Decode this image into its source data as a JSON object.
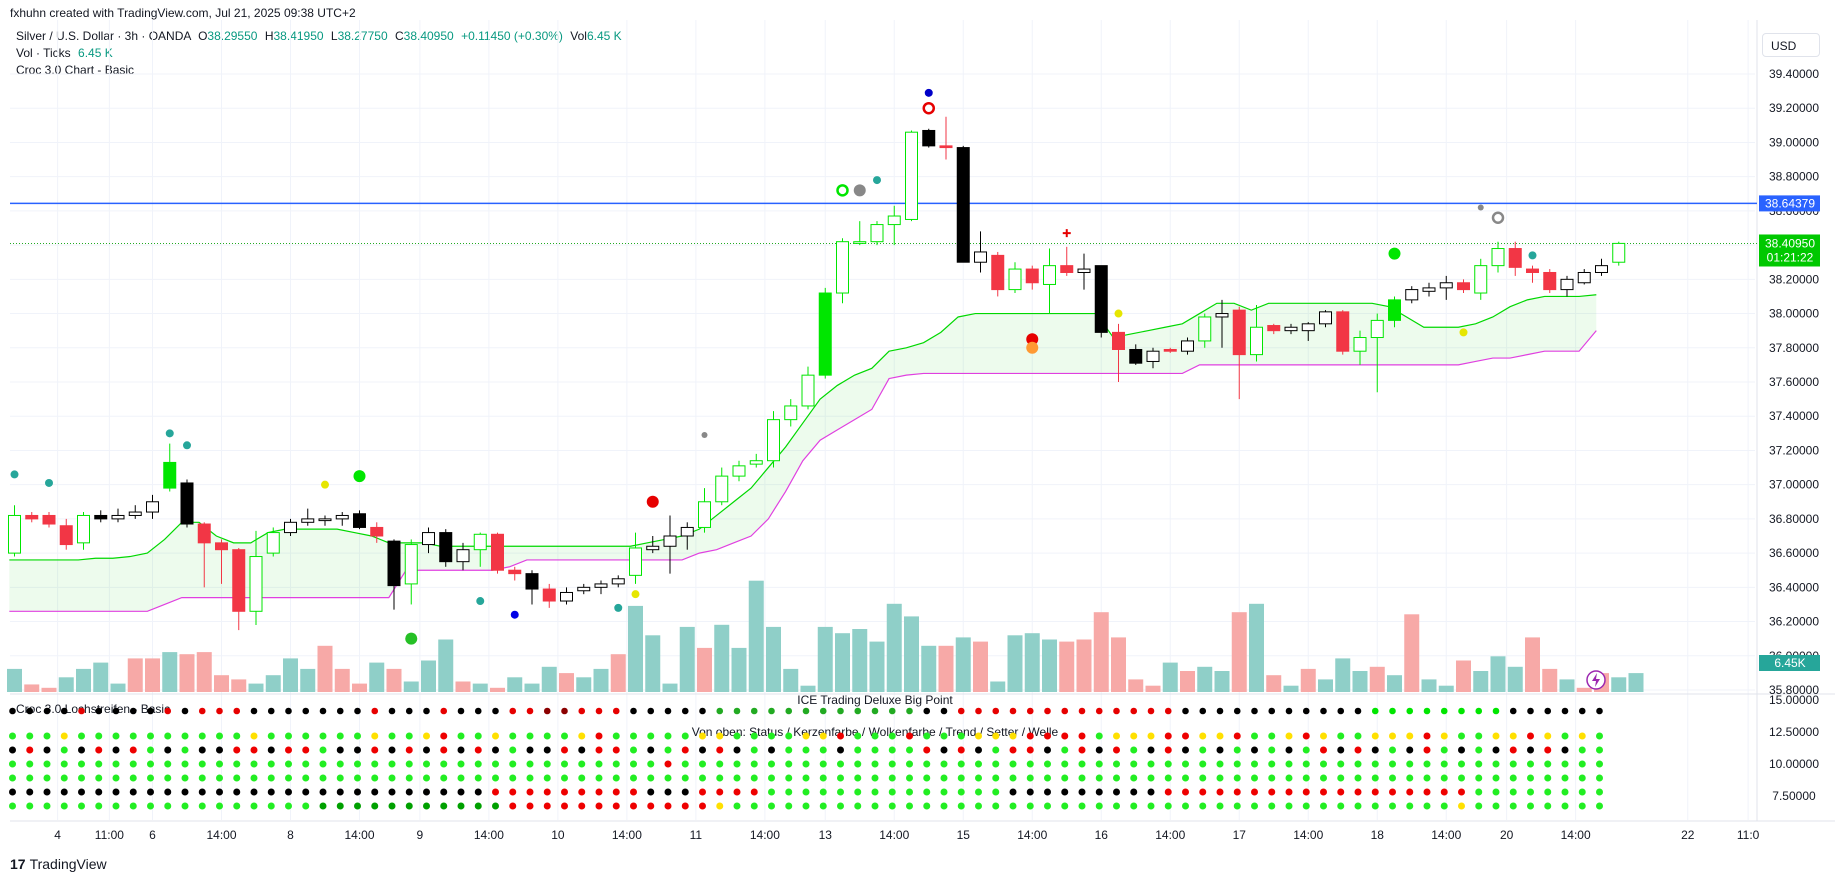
{
  "header": {
    "created_by": "fxhuhn created with TradingView.com, Jul 21, 2025 09:38 UTC+2"
  },
  "legend": {
    "symbol": "Silver / U.S. Dollar · 3h · OANDA",
    "open_label": "O",
    "open": "38.29550",
    "high_label": "H",
    "high": "38.41950",
    "low_label": "L",
    "low": "38.27750",
    "close_label": "C",
    "close": "38.40950",
    "change": "+0.11450 (+0.30%)",
    "vol_label": "Vol",
    "vol": "6.45 K",
    "vol_ticks_label": "Vol · Ticks",
    "vol_ticks_value": "6.45 K",
    "indicator_1": "Croc 3.0 Chart - Basic"
  },
  "currency_button": "USD",
  "footer": {
    "logo_text": "17",
    "brand": "TradingView"
  },
  "lower_pane": {
    "indicator_title": "Croc 3.0 Lochstreifen - Basic",
    "title_1": "ICE Trading Deluxe Big Point",
    "title_2": "Von oben: Status / Kerzenfarbe / Wolkenfarbe / Trend / Setter / Welle"
  },
  "colors": {
    "up_green": "#00e600",
    "down_red": "#f23645",
    "black": "#000000",
    "cloud_green": "#00d800",
    "cloud_magenta": "#e040e0",
    "level_line": "#2962ff",
    "vol_up": "#8fcfc8",
    "vol_down": "#f7a9a7"
  },
  "chart_data": {
    "type": "candlestick",
    "price_axis": {
      "ticks": [
        "39.40000",
        "39.20000",
        "39.00000",
        "38.80000",
        "38.60000",
        "38.40000",
        "38.20000",
        "38.00000",
        "37.80000",
        "37.60000",
        "37.40000",
        "37.20000",
        "37.00000",
        "36.80000",
        "36.60000",
        "36.40000",
        "36.20000",
        "36.00000",
        "35.80000"
      ],
      "tick_values": [
        39.4,
        39.2,
        39.0,
        38.8,
        38.6,
        38.4,
        38.2,
        38.0,
        37.8,
        37.6,
        37.4,
        37.2,
        37.0,
        36.8,
        36.6,
        36.4,
        36.2,
        36.0,
        35.8
      ],
      "ylim": [
        35.75,
        39.55
      ]
    },
    "price_labels": {
      "level": "38.64379",
      "level_value": 38.64379,
      "last": "38.40950",
      "last_value": 38.4095,
      "countdown": "01:21:22",
      "volume": "6.45K"
    },
    "osc_axis": {
      "ticks": [
        "15.00000",
        "12.50000",
        "10.00000",
        "7.50000"
      ]
    },
    "time_axis": {
      "labels": [
        "4",
        "11:00",
        "6",
        "14:00",
        "8",
        "14:00",
        "9",
        "14:00",
        "10",
        "14:00",
        "11",
        "14:00",
        "13",
        "14:00",
        "15",
        "14:00",
        "16",
        "14:00",
        "17",
        "14:00",
        "18",
        "14:00",
        "20",
        "14:00",
        "22",
        "11:0"
      ],
      "bars": [
        2.5,
        5.5,
        8,
        12,
        16,
        20,
        23.5,
        27.5,
        31.5,
        35.5,
        39.5,
        43.5,
        47,
        51,
        55,
        59,
        63,
        67,
        71,
        75,
        79,
        83,
        86.5,
        90.5,
        97,
        100.5
      ]
    },
    "candles": [
      {
        "o": 36.6,
        "h": 36.88,
        "l": 36.58,
        "c": 36.82
      },
      {
        "o": 36.82,
        "h": 36.84,
        "l": 36.78,
        "c": 36.8
      },
      {
        "o": 36.82,
        "h": 36.84,
        "l": 36.75,
        "c": 36.77
      },
      {
        "o": 36.76,
        "h": 36.8,
        "l": 36.62,
        "c": 36.65
      },
      {
        "o": 36.66,
        "h": 36.84,
        "l": 36.62,
        "c": 36.82
      },
      {
        "o": 36.82,
        "h": 36.85,
        "l": 36.78,
        "c": 36.8
      },
      {
        "o": 36.8,
        "h": 36.86,
        "l": 36.78,
        "c": 36.82
      },
      {
        "o": 36.82,
        "h": 36.88,
        "l": 36.8,
        "c": 36.84
      },
      {
        "o": 36.84,
        "h": 36.94,
        "l": 36.8,
        "c": 36.9
      },
      {
        "o": 36.98,
        "h": 37.24,
        "l": 36.96,
        "c": 37.13
      },
      {
        "o": 37.01,
        "h": 37.03,
        "l": 36.75,
        "c": 36.77
      },
      {
        "o": 36.77,
        "h": 36.78,
        "l": 36.4,
        "c": 36.66
      },
      {
        "o": 36.66,
        "h": 36.68,
        "l": 36.42,
        "c": 36.62
      },
      {
        "o": 36.62,
        "h": 36.63,
        "l": 36.15,
        "c": 36.26
      },
      {
        "o": 36.26,
        "h": 36.73,
        "l": 36.18,
        "c": 36.58
      },
      {
        "o": 36.6,
        "h": 36.75,
        "l": 36.58,
        "c": 36.72
      },
      {
        "o": 36.72,
        "h": 36.8,
        "l": 36.7,
        "c": 36.78
      },
      {
        "o": 36.78,
        "h": 36.86,
        "l": 36.76,
        "c": 36.8
      },
      {
        "o": 36.79,
        "h": 36.82,
        "l": 36.76,
        "c": 36.8
      },
      {
        "o": 36.8,
        "h": 36.84,
        "l": 36.76,
        "c": 36.82
      },
      {
        "o": 36.83,
        "h": 36.85,
        "l": 36.74,
        "c": 36.75
      },
      {
        "o": 36.75,
        "h": 36.78,
        "l": 36.66,
        "c": 36.7
      },
      {
        "o": 36.67,
        "h": 36.68,
        "l": 36.27,
        "c": 36.41
      },
      {
        "o": 36.42,
        "h": 36.68,
        "l": 36.3,
        "c": 36.65
      },
      {
        "o": 36.65,
        "h": 36.75,
        "l": 36.6,
        "c": 36.72
      },
      {
        "o": 36.72,
        "h": 36.74,
        "l": 36.52,
        "c": 36.55
      },
      {
        "o": 36.55,
        "h": 36.66,
        "l": 36.5,
        "c": 36.62
      },
      {
        "o": 36.62,
        "h": 36.72,
        "l": 36.52,
        "c": 36.71
      },
      {
        "o": 36.71,
        "h": 36.72,
        "l": 36.48,
        "c": 36.5
      },
      {
        "o": 36.5,
        "h": 36.52,
        "l": 36.44,
        "c": 36.48
      },
      {
        "o": 36.48,
        "h": 36.5,
        "l": 36.3,
        "c": 36.39
      },
      {
        "o": 36.39,
        "h": 36.42,
        "l": 36.28,
        "c": 36.32
      },
      {
        "o": 36.32,
        "h": 36.4,
        "l": 36.3,
        "c": 36.37
      },
      {
        "o": 36.38,
        "h": 36.42,
        "l": 36.36,
        "c": 36.4
      },
      {
        "o": 36.4,
        "h": 36.44,
        "l": 36.36,
        "c": 36.42
      },
      {
        "o": 36.42,
        "h": 36.47,
        "l": 36.4,
        "c": 36.45
      },
      {
        "o": 36.47,
        "h": 36.72,
        "l": 36.42,
        "c": 36.63
      },
      {
        "o": 36.62,
        "h": 36.7,
        "l": 36.6,
        "c": 36.64
      },
      {
        "o": 36.64,
        "h": 36.82,
        "l": 36.48,
        "c": 36.7
      },
      {
        "o": 36.7,
        "h": 36.78,
        "l": 36.62,
        "c": 36.75
      },
      {
        "o": 36.75,
        "h": 36.98,
        "l": 36.72,
        "c": 36.9
      },
      {
        "o": 36.9,
        "h": 37.1,
        "l": 36.88,
        "c": 37.05
      },
      {
        "o": 37.05,
        "h": 37.14,
        "l": 37.02,
        "c": 37.11
      },
      {
        "o": 37.12,
        "h": 37.18,
        "l": 37.1,
        "c": 37.14
      },
      {
        "o": 37.14,
        "h": 37.43,
        "l": 37.1,
        "c": 37.38
      },
      {
        "o": 37.38,
        "h": 37.5,
        "l": 37.34,
        "c": 37.46
      },
      {
        "o": 37.46,
        "h": 37.69,
        "l": 37.44,
        "c": 37.64
      },
      {
        "o": 37.64,
        "h": 38.15,
        "l": 37.62,
        "c": 38.12
      },
      {
        "o": 38.12,
        "h": 38.44,
        "l": 38.06,
        "c": 38.42
      },
      {
        "o": 38.41,
        "h": 38.54,
        "l": 38.4,
        "c": 38.42
      },
      {
        "o": 38.42,
        "h": 38.54,
        "l": 38.4,
        "c": 38.52
      },
      {
        "o": 38.52,
        "h": 38.63,
        "l": 38.4,
        "c": 38.57
      },
      {
        "o": 38.55,
        "h": 39.07,
        "l": 38.54,
        "c": 39.06
      },
      {
        "o": 39.07,
        "h": 39.08,
        "l": 38.97,
        "c": 38.98
      },
      {
        "o": 38.98,
        "h": 39.15,
        "l": 38.9,
        "c": 38.97
      },
      {
        "o": 38.97,
        "h": 38.98,
        "l": 38.3,
        "c": 38.3
      },
      {
        "o": 38.3,
        "h": 38.48,
        "l": 38.24,
        "c": 38.36
      },
      {
        "o": 38.34,
        "h": 38.36,
        "l": 38.1,
        "c": 38.14
      },
      {
        "o": 38.14,
        "h": 38.3,
        "l": 38.12,
        "c": 38.26
      },
      {
        "o": 38.26,
        "h": 38.28,
        "l": 38.14,
        "c": 38.18
      },
      {
        "o": 38.17,
        "h": 38.38,
        "l": 38.0,
        "c": 38.28
      },
      {
        "o": 38.28,
        "h": 38.39,
        "l": 38.22,
        "c": 38.24
      },
      {
        "o": 38.24,
        "h": 38.35,
        "l": 38.14,
        "c": 38.26
      },
      {
        "o": 38.28,
        "h": 38.28,
        "l": 37.86,
        "c": 37.89
      },
      {
        "o": 37.89,
        "h": 37.94,
        "l": 37.6,
        "c": 37.79
      },
      {
        "o": 37.79,
        "h": 37.82,
        "l": 37.7,
        "c": 37.71
      },
      {
        "o": 37.72,
        "h": 37.8,
        "l": 37.68,
        "c": 37.78
      },
      {
        "o": 37.79,
        "h": 37.8,
        "l": 37.77,
        "c": 37.78
      },
      {
        "o": 37.78,
        "h": 37.86,
        "l": 37.76,
        "c": 37.84
      },
      {
        "o": 37.84,
        "h": 38.0,
        "l": 37.8,
        "c": 37.98
      },
      {
        "o": 37.98,
        "h": 38.08,
        "l": 37.8,
        "c": 38.0
      },
      {
        "o": 38.02,
        "h": 38.04,
        "l": 37.5,
        "c": 37.76
      },
      {
        "o": 37.76,
        "h": 38.05,
        "l": 37.72,
        "c": 37.92
      },
      {
        "o": 37.93,
        "h": 37.94,
        "l": 37.88,
        "c": 37.9
      },
      {
        "o": 37.9,
        "h": 37.94,
        "l": 37.88,
        "c": 37.92
      },
      {
        "o": 37.9,
        "h": 37.95,
        "l": 37.84,
        "c": 37.94
      },
      {
        "o": 37.94,
        "h": 38.02,
        "l": 37.92,
        "c": 38.01
      },
      {
        "o": 38.01,
        "h": 38.02,
        "l": 37.76,
        "c": 37.78
      },
      {
        "o": 37.78,
        "h": 37.9,
        "l": 37.7,
        "c": 37.86
      },
      {
        "o": 37.86,
        "h": 38.0,
        "l": 37.54,
        "c": 37.96
      },
      {
        "o": 37.96,
        "h": 38.1,
        "l": 37.92,
        "c": 38.08
      },
      {
        "o": 38.08,
        "h": 38.16,
        "l": 38.06,
        "c": 38.14
      },
      {
        "o": 38.13,
        "h": 38.18,
        "l": 38.1,
        "c": 38.15
      },
      {
        "o": 38.15,
        "h": 38.22,
        "l": 38.08,
        "c": 38.18
      },
      {
        "o": 38.18,
        "h": 38.2,
        "l": 38.12,
        "c": 38.14
      },
      {
        "o": 38.12,
        "h": 38.32,
        "l": 38.08,
        "c": 38.28
      },
      {
        "o": 38.28,
        "h": 38.42,
        "l": 38.24,
        "c": 38.38
      },
      {
        "o": 38.38,
        "h": 38.42,
        "l": 38.22,
        "c": 38.27
      },
      {
        "o": 38.26,
        "h": 38.28,
        "l": 38.18,
        "c": 38.24
      },
      {
        "o": 38.24,
        "h": 38.26,
        "l": 38.12,
        "c": 38.14
      },
      {
        "o": 38.14,
        "h": 38.22,
        "l": 38.1,
        "c": 38.2
      },
      {
        "o": 38.18,
        "h": 38.26,
        "l": 38.17,
        "c": 38.24
      },
      {
        "o": 38.24,
        "h": 38.32,
        "l": 38.22,
        "c": 38.28
      },
      {
        "o": 38.3,
        "h": 38.42,
        "l": 38.28,
        "c": 38.41
      }
    ],
    "cloud_upper": [
      36.56,
      36.56,
      36.56,
      36.56,
      36.56,
      36.57,
      36.57,
      36.58,
      36.6,
      36.68,
      36.78,
      36.78,
      36.7,
      36.66,
      36.66,
      36.72,
      36.74,
      36.74,
      36.74,
      36.74,
      36.72,
      36.7,
      36.66,
      36.66,
      36.66,
      36.64,
      36.64,
      36.64,
      36.64,
      36.64,
      36.64,
      36.64,
      36.64,
      36.64,
      36.64,
      36.64,
      36.64,
      36.66,
      36.68,
      36.7,
      36.74,
      36.82,
      36.9,
      36.98,
      37.1,
      37.22,
      37.36,
      37.5,
      37.58,
      37.64,
      37.68,
      37.78,
      37.8,
      37.83,
      37.89,
      37.98,
      38.0,
      38.0,
      38.0,
      38.0,
      38.0,
      38.0,
      38.0,
      38.0,
      37.86,
      37.88,
      37.9,
      37.92,
      37.94,
      38.0,
      38.06,
      38.06,
      38.02,
      38.06,
      38.06,
      38.06,
      38.06,
      38.06,
      38.06,
      38.06,
      38.04,
      37.98,
      37.92,
      37.92,
      37.92,
      37.94,
      37.98,
      38.04,
      38.08,
      38.1,
      38.1,
      38.1,
      38.11
    ],
    "cloud_lower": [
      36.26,
      36.26,
      36.26,
      36.26,
      36.26,
      36.26,
      36.26,
      36.26,
      36.26,
      36.3,
      36.34,
      36.34,
      36.34,
      36.34,
      36.34,
      36.34,
      36.34,
      36.34,
      36.34,
      36.34,
      36.34,
      36.34,
      36.34,
      36.5,
      36.5,
      36.5,
      36.5,
      36.5,
      36.5,
      36.52,
      36.56,
      36.56,
      36.56,
      36.56,
      36.56,
      36.56,
      36.56,
      36.56,
      36.56,
      36.56,
      36.6,
      36.62,
      36.66,
      36.7,
      36.8,
      36.96,
      37.14,
      37.26,
      37.32,
      37.38,
      37.44,
      37.62,
      37.64,
      37.65,
      37.65,
      37.65,
      37.65,
      37.65,
      37.65,
      37.65,
      37.65,
      37.65,
      37.65,
      37.65,
      37.65,
      37.65,
      37.65,
      37.65,
      37.65,
      37.7,
      37.7,
      37.7,
      37.7,
      37.7,
      37.7,
      37.7,
      37.7,
      37.7,
      37.7,
      37.7,
      37.7,
      37.7,
      37.7,
      37.7,
      37.7,
      37.72,
      37.74,
      37.74,
      37.76,
      37.78,
      37.78,
      37.78,
      37.9,
      38.02
    ],
    "volume": [
      0.55,
      0.18,
      0.1,
      0.35,
      0.55,
      0.7,
      0.2,
      0.8,
      0.8,
      0.95,
      0.9,
      0.95,
      0.4,
      0.3,
      0.2,
      0.4,
      0.8,
      0.55,
      1.1,
      0.55,
      0.2,
      0.7,
      0.55,
      0.25,
      0.75,
      1.25,
      0.25,
      0.2,
      0.1,
      0.35,
      0.2,
      0.6,
      0.45,
      0.35,
      0.55,
      0.9,
      2.05,
      1.35,
      0.2,
      1.55,
      1.05,
      1.6,
      1.05,
      2.65,
      1.55,
      0.55,
      0.15,
      1.55,
      1.4,
      1.5,
      1.2,
      2.1,
      1.8,
      1.1,
      1.1,
      1.3,
      1.2,
      0.25,
      1.35,
      1.4,
      1.25,
      1.2,
      1.25,
      1.9,
      1.3,
      0.3,
      0.15,
      0.7,
      0.5,
      0.6,
      0.5,
      1.9,
      2.1,
      0.4,
      0.15,
      0.55,
      0.3,
      0.8,
      0.5,
      0.6,
      0.4,
      1.85,
      0.3,
      0.15,
      0.75,
      0.5,
      0.85,
      0.6,
      1.3,
      0.55,
      0.3,
      0.1,
      0.45,
      0.35,
      0.45
    ],
    "vol_dir": [
      "u",
      "d",
      "d",
      "u",
      "u",
      "u",
      "u",
      "d",
      "d",
      "u",
      "d",
      "d",
      "d",
      "d",
      "u",
      "u",
      "u",
      "u",
      "d",
      "d",
      "d",
      "u",
      "d",
      "u",
      "u",
      "u",
      "d",
      "u",
      "d",
      "u",
      "u",
      "u",
      "d",
      "u",
      "u",
      "d",
      "u",
      "u",
      "u",
      "u",
      "d",
      "u",
      "u",
      "u",
      "u",
      "u",
      "u",
      "u",
      "u",
      "u",
      "u",
      "u",
      "u",
      "u",
      "d",
      "u",
      "d",
      "u",
      "u",
      "u",
      "u",
      "d",
      "d",
      "d",
      "d",
      "d",
      "d",
      "u",
      "d",
      "u",
      "u",
      "d",
      "u",
      "d",
      "u",
      "d",
      "u",
      "u",
      "u",
      "d",
      "u",
      "d",
      "u",
      "u",
      "d",
      "u",
      "u",
      "u",
      "d",
      "d",
      "u",
      "d",
      "d",
      "u",
      "u"
    ],
    "markers": [
      {
        "i": 0,
        "p": 37.06,
        "c": "#26a69a",
        "r": 4
      },
      {
        "i": 2,
        "p": 37.01,
        "c": "#26a69a",
        "r": 4
      },
      {
        "i": 9,
        "p": 37.3,
        "c": "#26a69a",
        "r": 4
      },
      {
        "i": 10,
        "p": 37.23,
        "c": "#26a69a",
        "r": 4
      },
      {
        "i": 18,
        "p": 37.0,
        "c": "#e6e600",
        "r": 4
      },
      {
        "i": 20,
        "p": 37.05,
        "c": "#00e600",
        "r": 6
      },
      {
        "i": 23,
        "p": 36.1,
        "c": "#26c026",
        "r": 6
      },
      {
        "i": 27,
        "p": 36.32,
        "c": "#26a69a",
        "r": 4
      },
      {
        "i": 29,
        "p": 36.24,
        "c": "#0000e6",
        "r": 4
      },
      {
        "i": 35,
        "p": 36.28,
        "c": "#26a69a",
        "r": 4
      },
      {
        "i": 36,
        "p": 36.36,
        "c": "#e6e600",
        "r": 4
      },
      {
        "i": 37,
        "p": 36.9,
        "c": "#e60000",
        "r": 6
      },
      {
        "i": 40,
        "p": 37.29,
        "c": "#888888",
        "r": 3
      },
      {
        "i": 48,
        "p": 38.72,
        "c": "#00e600",
        "r": 5,
        "ring": true
      },
      {
        "i": 49,
        "p": 38.72,
        "c": "#888888",
        "r": 6
      },
      {
        "i": 50,
        "p": 38.78,
        "c": "#26a69a",
        "r": 4
      },
      {
        "i": 53,
        "p": 39.29,
        "c": "#0000c8",
        "r": 4
      },
      {
        "i": 53,
        "p": 39.2,
        "c": "#e60000",
        "r": 5,
        "ring": true
      },
      {
        "i": 59,
        "p": 37.85,
        "c": "#e60000",
        "r": 6
      },
      {
        "i": 59,
        "p": 37.8,
        "c": "#ff9933",
        "r": 6
      },
      {
        "i": 61,
        "p": 38.47,
        "c": "#e60000",
        "r": 3,
        "plus": true
      },
      {
        "i": 64,
        "p": 38.0,
        "c": "#e6e600",
        "r": 4
      },
      {
        "i": 80,
        "p": 38.35,
        "c": "#00e600",
        "r": 6
      },
      {
        "i": 84,
        "p": 37.89,
        "c": "#e6e600",
        "r": 4
      },
      {
        "i": 85,
        "p": 38.62,
        "c": "#888888",
        "r": 3
      },
      {
        "i": 86,
        "p": 38.56,
        "c": "#888888",
        "r": 5,
        "ring": true
      },
      {
        "i": 88,
        "p": 38.34,
        "c": "#26a69a",
        "r": 4
      }
    ],
    "dot_rows": [
      "#000000",
      "#00e600",
      "#ffd400",
      "#e60000",
      "#00e600",
      "#000000",
      "#00e600"
    ]
  }
}
